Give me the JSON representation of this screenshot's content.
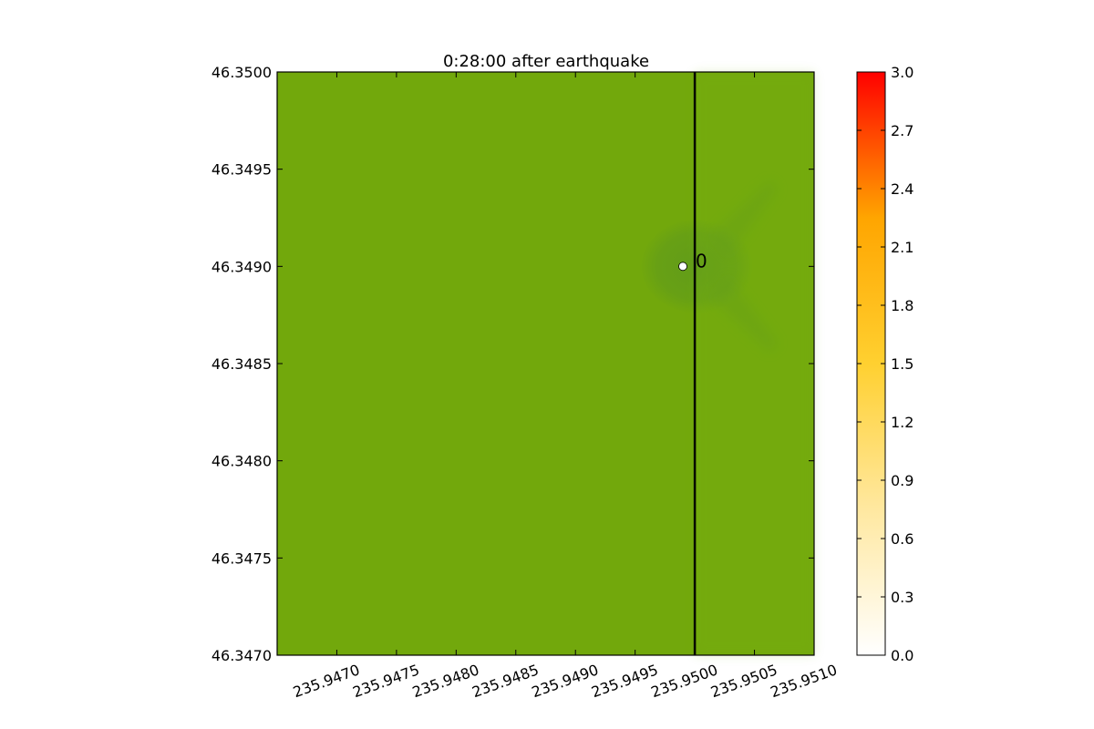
{
  "chart_data": {
    "type": "heatmap",
    "title": "0:28:00 after earthquake",
    "xlabel": "",
    "ylabel": "",
    "xlim": [
      235.9465,
      235.951
    ],
    "ylim": [
      46.347,
      46.35
    ],
    "x_tick_values": [
      235.947,
      235.9475,
      235.948,
      235.9485,
      235.949,
      235.9495,
      235.95,
      235.9505,
      235.951
    ],
    "x_tick_labels": [
      "235.9470",
      "235.9475",
      "235.9480",
      "235.9485",
      "235.9490",
      "235.9495",
      "235.9500",
      "235.9505",
      "235.9510"
    ],
    "y_tick_values": [
      46.35,
      46.3495,
      46.349,
      46.3485,
      46.348,
      46.3475,
      46.347
    ],
    "y_tick_labels": [
      "46.3500",
      "46.3495",
      "46.3490",
      "46.3485",
      "46.3480",
      "46.3475",
      "46.3470"
    ],
    "field_values": "0 everywhere (land topography shading only)",
    "background_color": "#72a80c",
    "depression_color": "#5f9a1c",
    "transect_line": {
      "x": 235.95,
      "color": "#000000"
    },
    "gauge": {
      "label": "0",
      "x": 235.9499,
      "y": 46.349
    },
    "colorbar": {
      "min": 0.0,
      "max": 3.0,
      "tick_values": [
        0.0,
        0.3,
        0.6,
        0.9,
        1.2,
        1.5,
        1.8,
        2.1,
        2.4,
        2.7,
        3.0
      ],
      "tick_labels": [
        "0.0",
        "0.3",
        "0.6",
        "0.9",
        "1.2",
        "1.5",
        "1.8",
        "2.1",
        "2.4",
        "2.7",
        "3.0"
      ],
      "colors": [
        "#ffffff",
        "#ffe8a0",
        "#ffd030",
        "#ffa500",
        "#ff0000"
      ]
    },
    "grid": false,
    "legend": "none"
  }
}
